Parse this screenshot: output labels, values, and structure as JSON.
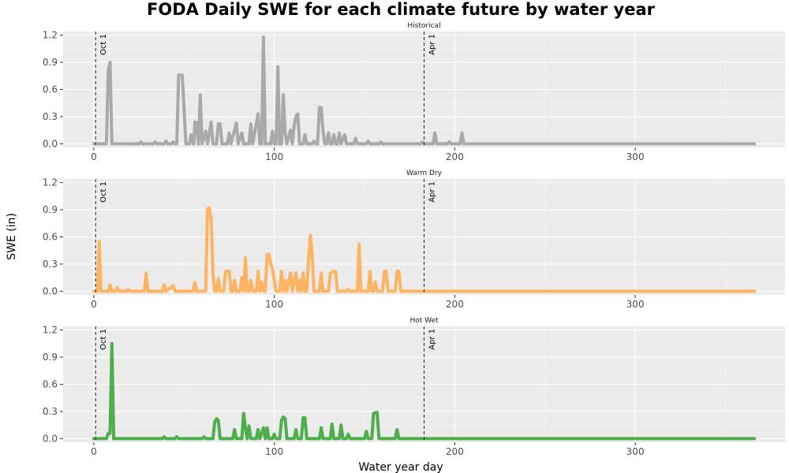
{
  "chart_data": {
    "type": "line",
    "title": "FODA Daily SWE for each climate future by water year",
    "xlabel": "Water year day",
    "ylabel": "SWE (in)",
    "xlim": [
      -17,
      383
    ],
    "ylim": [
      -0.04,
      1.24
    ],
    "xticks": [
      0,
      100,
      200,
      300
    ],
    "yticks": [
      "0.0",
      "0.3",
      "0.6",
      "0.9",
      "1.2"
    ],
    "grid": true,
    "background": "#ebebeb",
    "vlines": [
      {
        "x": 1,
        "label": "Oct 1"
      },
      {
        "x": 183,
        "label": "Apr 1"
      }
    ],
    "panels": [
      {
        "name": "Historical",
        "color": "#a9a9a9",
        "points": [
          [
            0,
            0
          ],
          [
            7,
            0
          ],
          [
            8,
            0.82
          ],
          [
            9,
            0.9
          ],
          [
            10,
            0
          ],
          [
            25,
            0
          ],
          [
            26,
            0.02
          ],
          [
            27,
            0
          ],
          [
            33,
            0
          ],
          [
            34,
            0.02
          ],
          [
            35,
            0
          ],
          [
            39,
            0
          ],
          [
            40,
            0.03
          ],
          [
            41,
            0
          ],
          [
            43,
            0
          ],
          [
            44,
            0.02
          ],
          [
            45,
            0
          ],
          [
            46,
            0
          ],
          [
            47,
            0.76
          ],
          [
            49,
            0.76
          ],
          [
            51,
            0
          ],
          [
            53,
            0
          ],
          [
            54,
            0.1
          ],
          [
            55,
            0
          ],
          [
            55.5,
            0
          ],
          [
            56,
            0.24
          ],
          [
            57,
            0.23
          ],
          [
            58,
            0
          ],
          [
            59,
            0.54
          ],
          [
            60,
            0
          ],
          [
            62,
            0.14
          ],
          [
            63,
            0
          ],
          [
            65,
            0.24
          ],
          [
            66,
            0
          ],
          [
            68,
            0
          ],
          [
            69,
            0.22
          ],
          [
            70,
            0.22
          ],
          [
            71,
            0
          ],
          [
            74,
            0
          ],
          [
            75,
            0.12
          ],
          [
            76,
            0
          ],
          [
            79,
            0.23
          ],
          [
            80,
            0
          ],
          [
            82,
            0.12
          ],
          [
            83,
            0
          ],
          [
            86,
            0
          ],
          [
            87,
            0.22
          ],
          [
            88,
            0
          ],
          [
            90,
            0.22
          ],
          [
            91,
            0.33
          ],
          [
            92,
            0
          ],
          [
            93,
            0
          ],
          [
            94,
            1.18
          ],
          [
            95,
            0
          ],
          [
            98,
            0
          ],
          [
            99,
            0.14
          ],
          [
            100,
            0
          ],
          [
            101,
            0
          ],
          [
            102,
            0.85
          ],
          [
            103,
            0
          ],
          [
            104,
            0
          ],
          [
            105,
            0.54
          ],
          [
            106,
            0.12
          ],
          [
            107,
            0
          ],
          [
            109,
            0.15
          ],
          [
            110,
            0
          ],
          [
            111,
            0.2
          ],
          [
            112,
            0.3
          ],
          [
            113,
            0.33
          ],
          [
            114,
            0
          ],
          [
            116,
            0
          ],
          [
            117,
            0.1
          ],
          [
            118,
            0
          ],
          [
            121,
            0
          ],
          [
            122,
            0.03
          ],
          [
            123,
            0
          ],
          [
            124,
            0
          ],
          [
            125,
            0.4
          ],
          [
            126,
            0.4
          ],
          [
            127,
            0.14
          ],
          [
            128,
            0
          ],
          [
            129,
            0
          ],
          [
            130,
            0.12
          ],
          [
            131,
            0
          ],
          [
            132,
            0
          ],
          [
            133,
            0.1
          ],
          [
            134,
            0
          ],
          [
            135,
            0
          ],
          [
            136,
            0.12
          ],
          [
            137,
            0
          ],
          [
            139,
            0.1
          ],
          [
            140,
            0
          ],
          [
            144,
            0
          ],
          [
            145,
            0.06
          ],
          [
            146,
            0
          ],
          [
            151,
            0
          ],
          [
            152,
            0.03
          ],
          [
            153,
            0
          ],
          [
            158,
            0
          ],
          [
            159,
            0.02
          ],
          [
            160,
            0
          ],
          [
            181,
            0
          ],
          [
            182,
            0.02
          ],
          [
            183,
            0
          ],
          [
            188,
            0
          ],
          [
            189,
            0.12
          ],
          [
            190,
            0
          ],
          [
            196,
            0
          ],
          [
            197,
            0.02
          ],
          [
            198,
            0
          ],
          [
            203,
            0
          ],
          [
            204,
            0.12
          ],
          [
            205,
            0
          ],
          [
            366,
            0
          ]
        ]
      },
      {
        "name": "Warm Dry",
        "color": "#fdb462",
        "points": [
          [
            0,
            0
          ],
          [
            2,
            0
          ],
          [
            3,
            0.55
          ],
          [
            4,
            0
          ],
          [
            8,
            0
          ],
          [
            9,
            0.07
          ],
          [
            10,
            0
          ],
          [
            12,
            0
          ],
          [
            13,
            0.04
          ],
          [
            14,
            0
          ],
          [
            18,
            0
          ],
          [
            19,
            0.02
          ],
          [
            20,
            0
          ],
          [
            28,
            0
          ],
          [
            29,
            0.2
          ],
          [
            30,
            0
          ],
          [
            38,
            0
          ],
          [
            39,
            0.07
          ],
          [
            40,
            0
          ],
          [
            44,
            0.06
          ],
          [
            45,
            0
          ],
          [
            55,
            0
          ],
          [
            56,
            0.1
          ],
          [
            57,
            0
          ],
          [
            62,
            0
          ],
          [
            63,
            0.91
          ],
          [
            64,
            0.92
          ],
          [
            65,
            0.8
          ],
          [
            66,
            0.2
          ],
          [
            67,
            0
          ],
          [
            68,
            0
          ],
          [
            69,
            0.14
          ],
          [
            70,
            0
          ],
          [
            72,
            0
          ],
          [
            73,
            0.22
          ],
          [
            75,
            0.22
          ],
          [
            76,
            0
          ],
          [
            77,
            0
          ],
          [
            78,
            0.12
          ],
          [
            79,
            0
          ],
          [
            81,
            0
          ],
          [
            82,
            0.15
          ],
          [
            83,
            0
          ],
          [
            84,
            0.37
          ],
          [
            85,
            0
          ],
          [
            86,
            0
          ],
          [
            87,
            0.12
          ],
          [
            88,
            0
          ],
          [
            90,
            0
          ],
          [
            91,
            0.22
          ],
          [
            92,
            0
          ],
          [
            93,
            0.1
          ],
          [
            94,
            0
          ],
          [
            95,
            0
          ],
          [
            96,
            0.4
          ],
          [
            97,
            0.41
          ],
          [
            98,
            0.3
          ],
          [
            99,
            0.25
          ],
          [
            100,
            0.12
          ],
          [
            101,
            0
          ],
          [
            103,
            0
          ],
          [
            104,
            0.22
          ],
          [
            105,
            0
          ],
          [
            106,
            0.12
          ],
          [
            107,
            0
          ],
          [
            109,
            0.2
          ],
          [
            110,
            0
          ],
          [
            112,
            0.2
          ],
          [
            113,
            0
          ],
          [
            114,
            0.12
          ],
          [
            115,
            0
          ],
          [
            116,
            0.2
          ],
          [
            117,
            0
          ],
          [
            118,
            0
          ],
          [
            119,
            0.36
          ],
          [
            120,
            0.62
          ],
          [
            121,
            0.4
          ],
          [
            122,
            0
          ],
          [
            125,
            0
          ],
          [
            126,
            0.2
          ],
          [
            127,
            0
          ],
          [
            130,
            0
          ],
          [
            131,
            0.2
          ],
          [
            133,
            0.22
          ],
          [
            134,
            0.22
          ],
          [
            135,
            0
          ],
          [
            140,
            0
          ],
          [
            141,
            0.02
          ],
          [
            142,
            0
          ],
          [
            146,
            0
          ],
          [
            147,
            0.52
          ],
          [
            148,
            0
          ],
          [
            152,
            0
          ],
          [
            153,
            0.22
          ],
          [
            154,
            0
          ],
          [
            155,
            0
          ],
          [
            156,
            0.1
          ],
          [
            157,
            0
          ],
          [
            160,
            0
          ],
          [
            161,
            0.22
          ],
          [
            162,
            0.22
          ],
          [
            163,
            0
          ],
          [
            167,
            0
          ],
          [
            168,
            0.22
          ],
          [
            169,
            0.22
          ],
          [
            170,
            0
          ],
          [
            366,
            0
          ]
        ]
      },
      {
        "name": "Hot Wet",
        "color": "#4dae4a",
        "points": [
          [
            0,
            0
          ],
          [
            7,
            0
          ],
          [
            8,
            0.06
          ],
          [
            9,
            0.06
          ],
          [
            10,
            1.05
          ],
          [
            11,
            0
          ],
          [
            38,
            0
          ],
          [
            39,
            0.02
          ],
          [
            40,
            0
          ],
          [
            45,
            0
          ],
          [
            46,
            0.02
          ],
          [
            47,
            0
          ],
          [
            60,
            0
          ],
          [
            61,
            0.02
          ],
          [
            62,
            0
          ],
          [
            66,
            0
          ],
          [
            67,
            0.18
          ],
          [
            68,
            0.22
          ],
          [
            69,
            0.2
          ],
          [
            70,
            0
          ],
          [
            77,
            0
          ],
          [
            78,
            0.1
          ],
          [
            79,
            0
          ],
          [
            82,
            0
          ],
          [
            83,
            0.28
          ],
          [
            84,
            0.12
          ],
          [
            85,
            0
          ],
          [
            86,
            0.14
          ],
          [
            87,
            0
          ],
          [
            90,
            0
          ],
          [
            91,
            0.1
          ],
          [
            92,
            0
          ],
          [
            94,
            0.12
          ],
          [
            95,
            0
          ],
          [
            96,
            0.12
          ],
          [
            97,
            0
          ],
          [
            99,
            0
          ],
          [
            100,
            0.05
          ],
          [
            101,
            0
          ],
          [
            103,
            0
          ],
          [
            104,
            0.2
          ],
          [
            105,
            0.24
          ],
          [
            106,
            0.22
          ],
          [
            107,
            0
          ],
          [
            111,
            0
          ],
          [
            112,
            0.1
          ],
          [
            113,
            0
          ],
          [
            115,
            0
          ],
          [
            116,
            0.23
          ],
          [
            117,
            0.23
          ],
          [
            118,
            0
          ],
          [
            125,
            0
          ],
          [
            126,
            0.12
          ],
          [
            127,
            0
          ],
          [
            131,
            0
          ],
          [
            132,
            0.16
          ],
          [
            133,
            0
          ],
          [
            136,
            0
          ],
          [
            137,
            0.15
          ],
          [
            138,
            0
          ],
          [
            140,
            0
          ],
          [
            141,
            0.05
          ],
          [
            142,
            0
          ],
          [
            150,
            0
          ],
          [
            151,
            0.08
          ],
          [
            152,
            0
          ],
          [
            154,
            0
          ],
          [
            155,
            0.28
          ],
          [
            157,
            0.29
          ],
          [
            158,
            0
          ],
          [
            167,
            0
          ],
          [
            168,
            0.1
          ],
          [
            169,
            0
          ],
          [
            366,
            0
          ]
        ]
      }
    ]
  }
}
